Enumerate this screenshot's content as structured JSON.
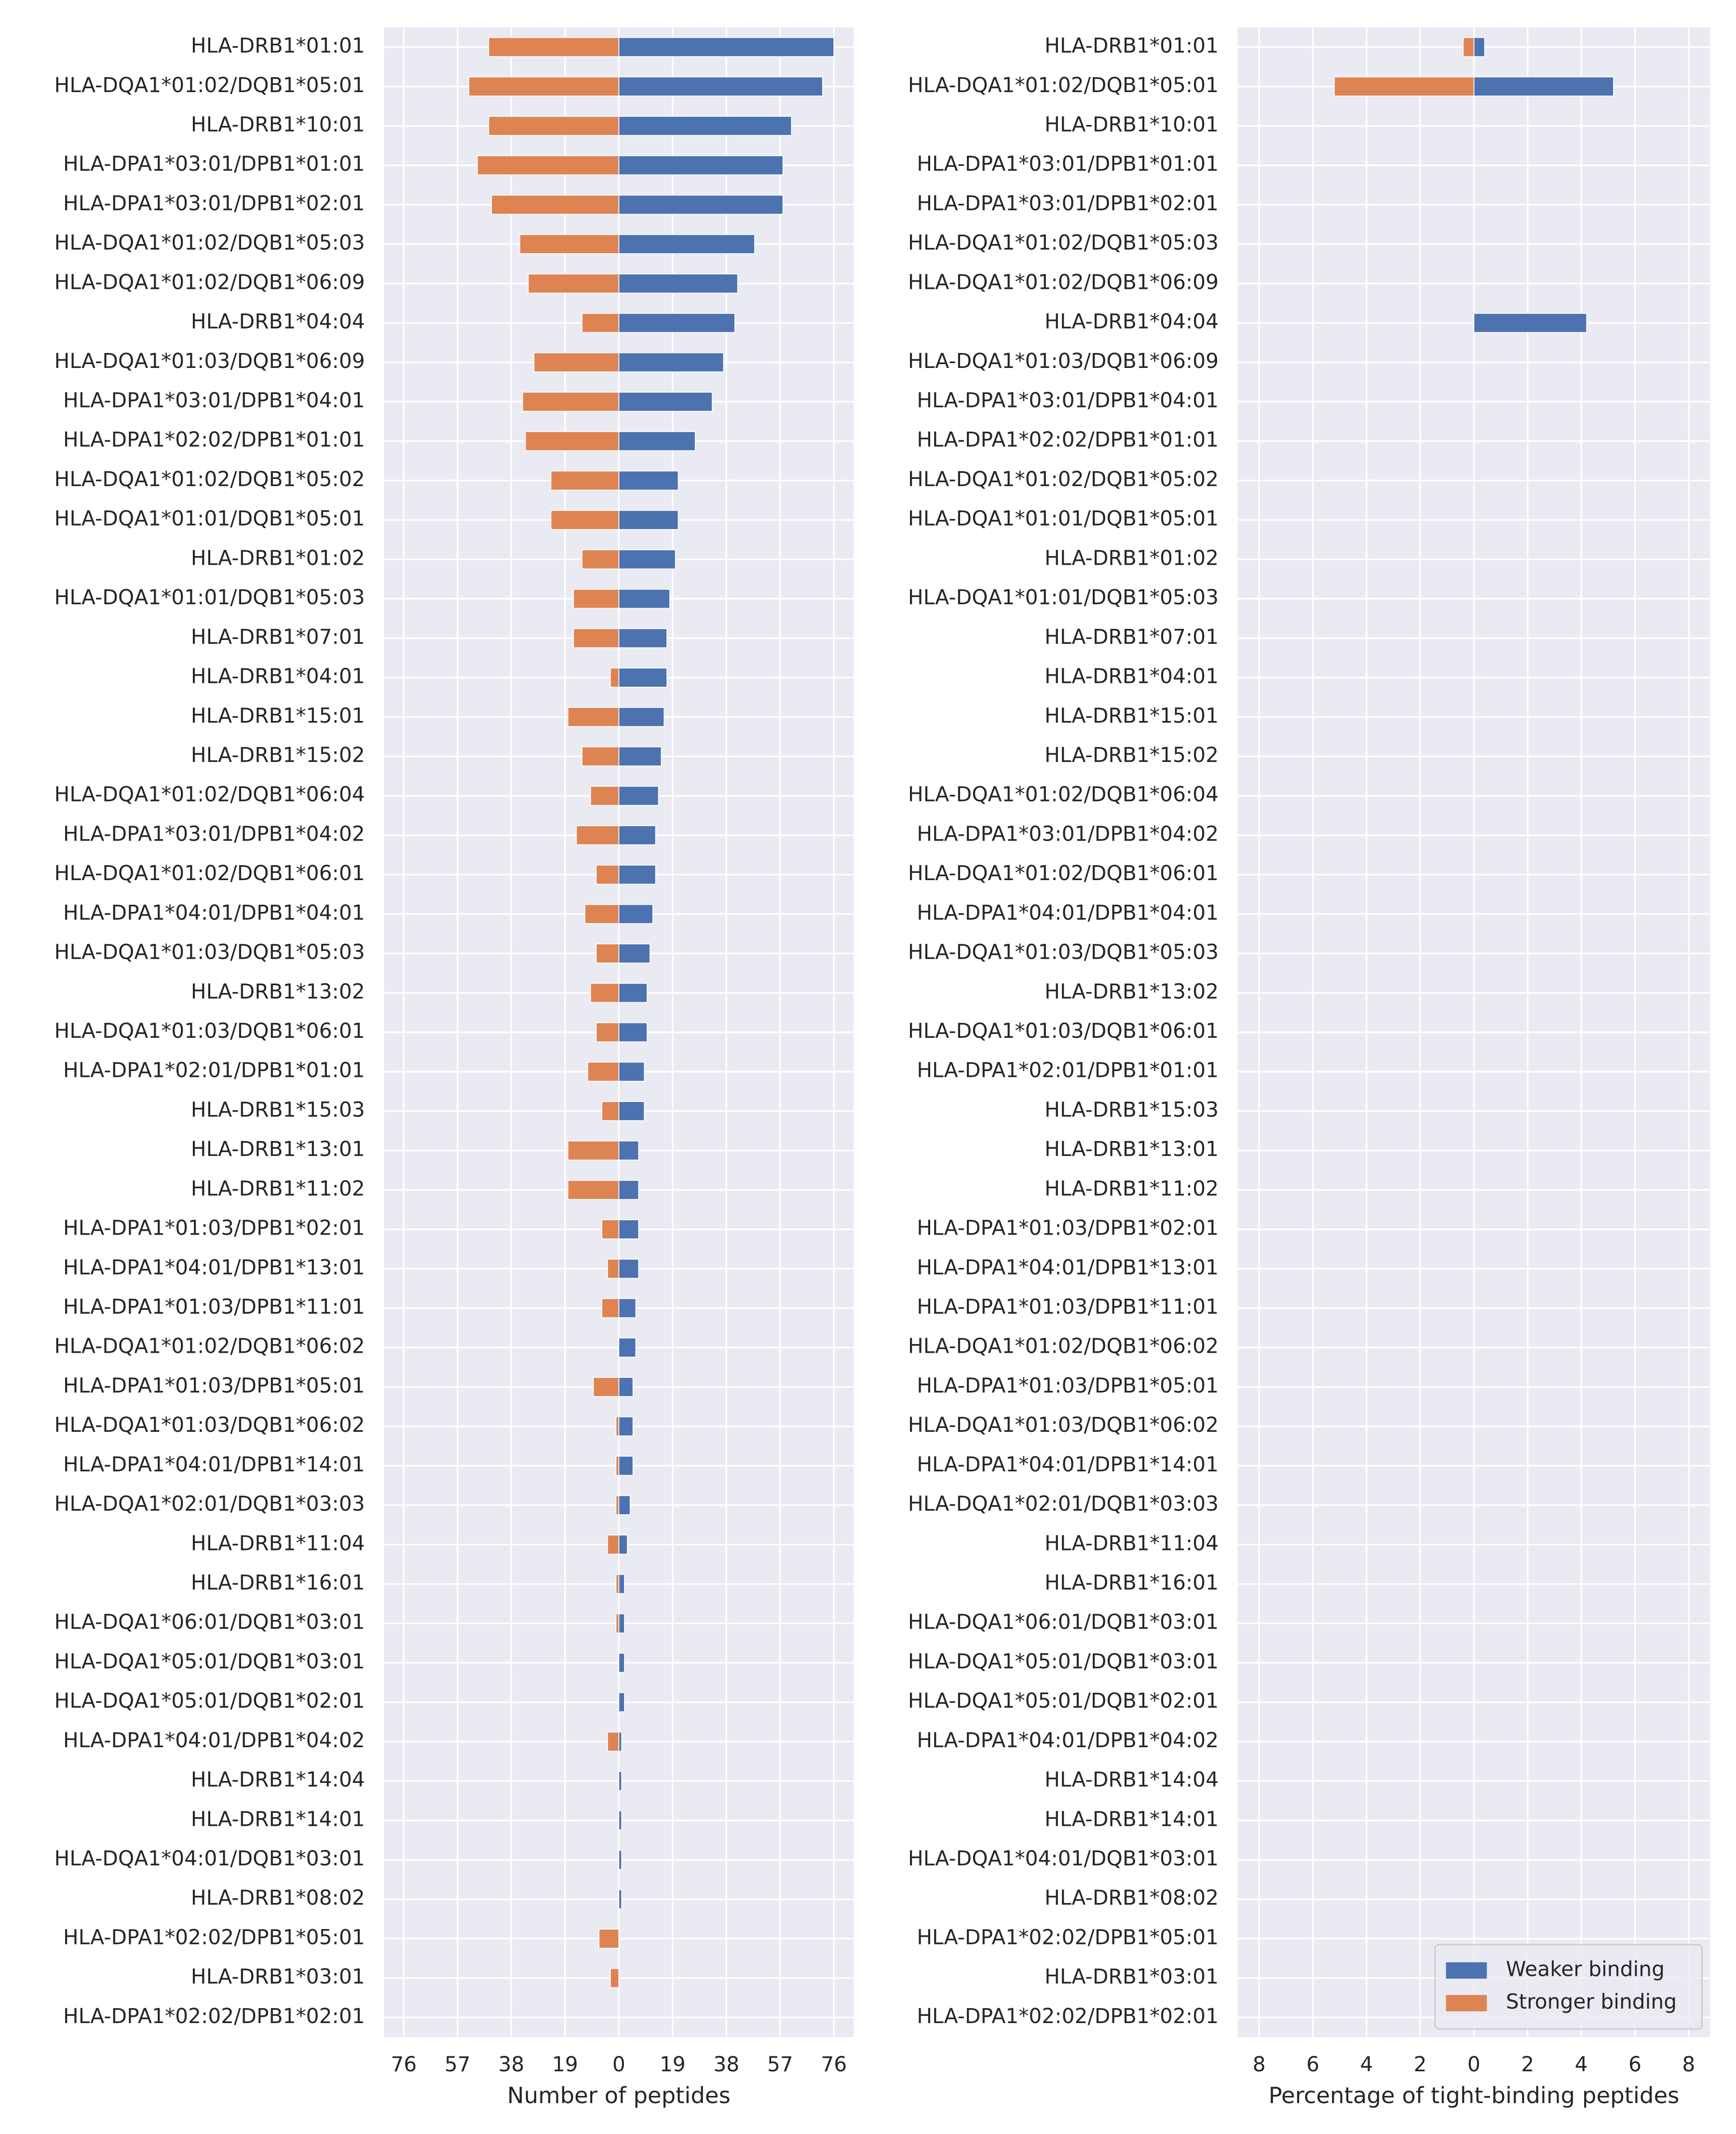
{
  "chart_data": [
    {
      "type": "bar",
      "orientation": "horizontal",
      "categories": [
        "HLA-DRB1*01:01",
        "HLA-DQA1*01:02/DQB1*05:01",
        "HLA-DRB1*10:01",
        "HLA-DPA1*03:01/DPB1*01:01",
        "HLA-DPA1*03:01/DPB1*02:01",
        "HLA-DQA1*01:02/DQB1*05:03",
        "HLA-DQA1*01:02/DQB1*06:09",
        "HLA-DRB1*04:04",
        "HLA-DQA1*01:03/DQB1*06:09",
        "HLA-DPA1*03:01/DPB1*04:01",
        "HLA-DPA1*02:02/DPB1*01:01",
        "HLA-DQA1*01:02/DQB1*05:02",
        "HLA-DQA1*01:01/DQB1*05:01",
        "HLA-DRB1*01:02",
        "HLA-DQA1*01:01/DQB1*05:03",
        "HLA-DRB1*07:01",
        "HLA-DRB1*04:01",
        "HLA-DRB1*15:01",
        "HLA-DRB1*15:02",
        "HLA-DQA1*01:02/DQB1*06:04",
        "HLA-DPA1*03:01/DPB1*04:02",
        "HLA-DQA1*01:02/DQB1*06:01",
        "HLA-DPA1*04:01/DPB1*04:01",
        "HLA-DQA1*01:03/DQB1*05:03",
        "HLA-DRB1*13:02",
        "HLA-DQA1*01:03/DQB1*06:01",
        "HLA-DPA1*02:01/DPB1*01:01",
        "HLA-DRB1*15:03",
        "HLA-DRB1*13:01",
        "HLA-DRB1*11:02",
        "HLA-DPA1*01:03/DPB1*02:01",
        "HLA-DPA1*04:01/DPB1*13:01",
        "HLA-DPA1*01:03/DPB1*11:01",
        "HLA-DQA1*01:02/DQB1*06:02",
        "HLA-DPA1*01:03/DPB1*05:01",
        "HLA-DQA1*01:03/DQB1*06:02",
        "HLA-DPA1*04:01/DPB1*14:01",
        "HLA-DQA1*02:01/DQB1*03:03",
        "HLA-DRB1*11:04",
        "HLA-DRB1*16:01",
        "HLA-DQA1*06:01/DQB1*03:01",
        "HLA-DQA1*05:01/DQB1*03:01",
        "HLA-DQA1*05:01/DQB1*02:01",
        "HLA-DPA1*04:01/DPB1*04:02",
        "HLA-DRB1*14:04",
        "HLA-DRB1*14:01",
        "HLA-DQA1*04:01/DQB1*03:01",
        "HLA-DRB1*08:02",
        "HLA-DPA1*02:02/DPB1*05:01",
        "HLA-DRB1*03:01",
        "HLA-DPA1*02:02/DPB1*02:01"
      ],
      "series": [
        {
          "color": "#4c72b0",
          "values": [
            76,
            72,
            61,
            58,
            58,
            48,
            42,
            41,
            37,
            33,
            27,
            21,
            21,
            20,
            18,
            17,
            17,
            16,
            15,
            14,
            13,
            13,
            12,
            11,
            10,
            10,
            9,
            9,
            7,
            7,
            7,
            7,
            6,
            6,
            5,
            5,
            5,
            4,
            3,
            2,
            2,
            2,
            2,
            1,
            1,
            1,
            1,
            1,
            0,
            0,
            0
          ]
        },
        {
          "color": "#dd8452",
          "values": [
            -46,
            -53,
            -46,
            -50,
            -45,
            -35,
            -32,
            -13,
            -30,
            -34,
            -33,
            -24,
            -24,
            -13,
            -16,
            -16,
            -3,
            -18,
            -13,
            -10,
            -15,
            -8,
            -12,
            -8,
            -10,
            -8,
            -11,
            -6,
            -18,
            -18,
            -6,
            -4,
            -6,
            0,
            -9,
            -1,
            -1,
            -1,
            -4,
            -1,
            -1,
            0,
            0,
            -4,
            0,
            0,
            0,
            0,
            -7,
            -3,
            0
          ]
        }
      ],
      "xlim": [
        -83,
        83
      ],
      "xticks": [
        {
          "value": -76,
          "label": "76"
        },
        {
          "value": -57,
          "label": "57"
        },
        {
          "value": -38,
          "label": "38"
        },
        {
          "value": -19,
          "label": "19"
        },
        0,
        19,
        38,
        57,
        76
      ],
      "xlabel": "Number of peptides",
      "grid": true
    },
    {
      "type": "bar",
      "orientation": "horizontal",
      "categories": [
        "HLA-DRB1*01:01",
        "HLA-DQA1*01:02/DQB1*05:01",
        "HLA-DRB1*10:01",
        "HLA-DPA1*03:01/DPB1*01:01",
        "HLA-DPA1*03:01/DPB1*02:01",
        "HLA-DQA1*01:02/DQB1*05:03",
        "HLA-DQA1*01:02/DQB1*06:09",
        "HLA-DRB1*04:04",
        "HLA-DQA1*01:03/DQB1*06:09",
        "HLA-DPA1*03:01/DPB1*04:01",
        "HLA-DPA1*02:02/DPB1*01:01",
        "HLA-DQA1*01:02/DQB1*05:02",
        "HLA-DQA1*01:01/DQB1*05:01",
        "HLA-DRB1*01:02",
        "HLA-DQA1*01:01/DQB1*05:03",
        "HLA-DRB1*07:01",
        "HLA-DRB1*04:01",
        "HLA-DRB1*15:01",
        "HLA-DRB1*15:02",
        "HLA-DQA1*01:02/DQB1*06:04",
        "HLA-DPA1*03:01/DPB1*04:02",
        "HLA-DQA1*01:02/DQB1*06:01",
        "HLA-DPA1*04:01/DPB1*04:01",
        "HLA-DQA1*01:03/DQB1*05:03",
        "HLA-DRB1*13:02",
        "HLA-DQA1*01:03/DQB1*06:01",
        "HLA-DPA1*02:01/DPB1*01:01",
        "HLA-DRB1*15:03",
        "HLA-DRB1*13:01",
        "HLA-DRB1*11:02",
        "HLA-DPA1*01:03/DPB1*02:01",
        "HLA-DPA1*04:01/DPB1*13:01",
        "HLA-DPA1*01:03/DPB1*11:01",
        "HLA-DQA1*01:02/DQB1*06:02",
        "HLA-DPA1*01:03/DPB1*05:01",
        "HLA-DQA1*01:03/DQB1*06:02",
        "HLA-DPA1*04:01/DPB1*14:01",
        "HLA-DQA1*02:01/DQB1*03:03",
        "HLA-DRB1*11:04",
        "HLA-DRB1*16:01",
        "HLA-DQA1*06:01/DQB1*03:01",
        "HLA-DQA1*05:01/DQB1*03:01",
        "HLA-DQA1*05:01/DQB1*02:01",
        "HLA-DPA1*04:01/DPB1*04:02",
        "HLA-DRB1*14:04",
        "HLA-DRB1*14:01",
        "HLA-DQA1*04:01/DQB1*03:01",
        "HLA-DRB1*08:02",
        "HLA-DPA1*02:02/DPB1*05:01",
        "HLA-DRB1*03:01",
        "HLA-DPA1*02:02/DPB1*02:01"
      ],
      "series": [
        {
          "name": "Weaker binding",
          "color": "#4c72b0",
          "values": [
            0.4,
            5.2,
            0,
            0,
            0,
            0,
            0,
            4.2,
            0,
            0,
            0,
            0,
            0,
            0,
            0,
            0,
            0,
            0,
            0,
            0,
            0,
            0,
            0,
            0,
            0,
            0,
            0,
            0,
            0,
            0,
            0,
            0,
            0,
            0,
            0,
            0,
            0,
            0,
            0,
            0,
            0,
            0,
            0,
            0,
            0,
            0,
            0,
            0,
            0,
            0,
            0
          ]
        },
        {
          "name": "Stronger binding",
          "color": "#dd8452",
          "values": [
            -0.4,
            -5.2,
            0,
            0,
            0,
            0,
            0,
            0,
            0,
            0,
            0,
            0,
            0,
            0,
            0,
            0,
            0,
            0,
            0,
            0,
            0,
            0,
            0,
            0,
            0,
            0,
            0,
            0,
            0,
            0,
            0,
            0,
            0,
            0,
            0,
            0,
            0,
            0,
            0,
            0,
            0,
            0,
            0,
            0,
            0,
            0,
            0,
            0,
            0,
            0,
            0
          ]
        }
      ],
      "xlim": [
        -8.8,
        8.8
      ],
      "xticks": [
        {
          "value": -8,
          "label": "8"
        },
        {
          "value": -6,
          "label": "6"
        },
        {
          "value": -4,
          "label": "4"
        },
        {
          "value": -2,
          "label": "2"
        },
        0,
        2,
        4,
        6,
        8
      ],
      "xlabel": "Percentage of tight-binding peptides",
      "grid": true,
      "legend": "lower right"
    }
  ]
}
